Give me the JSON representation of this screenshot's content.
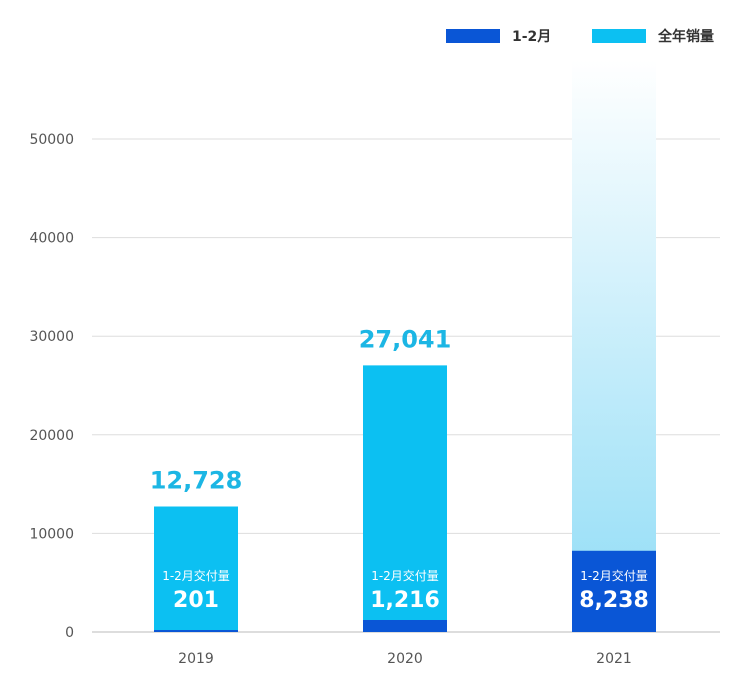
{
  "chart_data": {
    "type": "bar",
    "categories": [
      "2019",
      "2020",
      "2021"
    ],
    "series": [
      {
        "name": "1-2月",
        "values": [
          201,
          1216,
          8238
        ],
        "value_labels": [
          "201",
          "1,216",
          "8,238"
        ],
        "caption": "1-2月交付量",
        "color": "#0a56d6"
      },
      {
        "name": "全年销量",
        "values": [
          12728,
          27041,
          null
        ],
        "value_labels": [
          "12,728",
          "27,041",
          ""
        ],
        "color": "#0cc0f2"
      }
    ],
    "y_ticks": [
      "0",
      "10000",
      "20000",
      "30000",
      "40000",
      "50000"
    ],
    "ylim": [
      0,
      50000
    ],
    "grid": true,
    "legend_position": "top-right",
    "colors": {
      "label_text": "#1cb6e4",
      "axis_text": "#555555",
      "grid": "#dddddd",
      "gradient_top": "#ffffff",
      "gradient_bottom": "#8fdcf6"
    }
  }
}
